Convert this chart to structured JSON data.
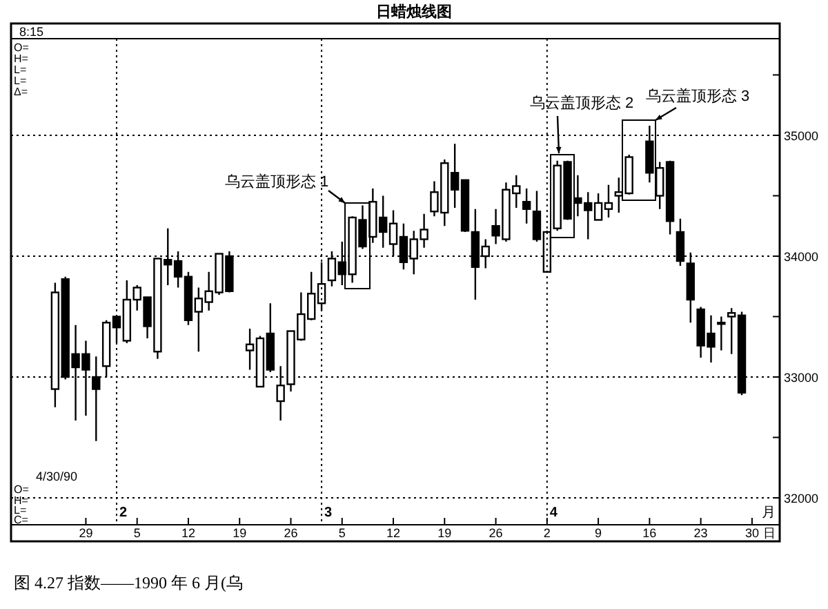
{
  "chart_data": {
    "type": "candlestick",
    "title": "日蜡烛线图",
    "xlabel": "日",
    "categories": [
      null,
      null,
      null,
      "29",
      null,
      null,
      null,
      null,
      "5",
      null,
      null,
      null,
      null,
      "12",
      null,
      null,
      null,
      null,
      "19",
      null,
      null,
      null,
      null,
      "26",
      null,
      null,
      null,
      null,
      "5",
      null,
      null,
      null,
      null,
      "12",
      null,
      null,
      null,
      null,
      "19",
      null,
      null,
      null,
      null,
      "26",
      null,
      null,
      null,
      null,
      "2",
      null,
      null,
      null,
      null,
      "9",
      null,
      null,
      null,
      null,
      "16",
      null,
      null,
      null,
      null,
      "23",
      null,
      null,
      null,
      null,
      "30"
    ],
    "ohlc": [
      [
        32900,
        33780,
        32750,
        33700
      ],
      [
        33810,
        33830,
        32980,
        33000
      ],
      [
        33190,
        33430,
        32640,
        33080
      ],
      [
        33190,
        33300,
        32680,
        33060
      ],
      [
        33000,
        33170,
        32470,
        32900
      ],
      [
        33090,
        33470,
        33000,
        33450
      ],
      [
        33500,
        33510,
        33280,
        33410
      ],
      [
        33300,
        33800,
        33280,
        33640
      ],
      [
        33640,
        33760,
        33550,
        33740
      ],
      [
        33660,
        33660,
        33320,
        33420
      ],
      [
        33210,
        33980,
        33150,
        33980
      ],
      [
        33970,
        34230,
        33760,
        33930
      ],
      [
        33960,
        34040,
        33740,
        33830
      ],
      [
        33830,
        33870,
        33430,
        33470
      ],
      [
        33540,
        33740,
        33210,
        33650
      ],
      [
        33620,
        33870,
        33550,
        33710
      ],
      [
        33700,
        34020,
        33680,
        34020
      ],
      [
        34000,
        34040,
        33700,
        33710
      ],
      null,
      [
        33220,
        33400,
        33060,
        33270
      ],
      [
        32920,
        33340,
        32920,
        33320
      ],
      [
        33360,
        33610,
        33040,
        33060
      ],
      [
        32800,
        33090,
        32640,
        32930
      ],
      [
        32940,
        33380,
        32880,
        33380
      ],
      [
        33310,
        33700,
        33300,
        33520
      ],
      [
        33480,
        33870,
        33470,
        33690
      ],
      [
        33610,
        33950,
        33550,
        33770
      ],
      [
        33800,
        34040,
        33750,
        33980
      ],
      [
        33950,
        34120,
        33760,
        33850
      ],
      [
        33850,
        34330,
        33780,
        34320
      ],
      [
        34300,
        34420,
        34060,
        34080
      ],
      [
        34160,
        34560,
        34110,
        34450
      ],
      [
        34320,
        34500,
        34070,
        34200
      ],
      [
        34100,
        34380,
        34000,
        34270
      ],
      [
        34160,
        34270,
        33890,
        33950
      ],
      [
        33980,
        34210,
        33850,
        34140
      ],
      [
        34140,
        34350,
        34070,
        34220
      ],
      [
        34370,
        34620,
        34330,
        34530
      ],
      [
        34360,
        34800,
        34250,
        34770
      ],
      [
        34690,
        34930,
        34400,
        34550
      ],
      [
        34630,
        34630,
        34200,
        34210
      ],
      [
        34200,
        34390,
        33640,
        33910
      ],
      [
        34000,
        34140,
        33900,
        34080
      ],
      [
        34250,
        34390,
        34100,
        34170
      ],
      [
        34140,
        34610,
        34120,
        34550
      ],
      [
        34520,
        34670,
        34400,
        34580
      ],
      [
        34450,
        34560,
        34270,
        34390
      ],
      [
        34370,
        34540,
        34120,
        34140
      ],
      [
        33870,
        34210,
        33870,
        34200
      ],
      [
        34230,
        34790,
        34210,
        34750
      ],
      [
        34780,
        34790,
        34300,
        34310
      ],
      [
        34480,
        34670,
        34330,
        34440
      ],
      [
        34440,
        34530,
        34140,
        34380
      ],
      [
        34300,
        34520,
        34300,
        34440
      ],
      [
        34390,
        34590,
        34320,
        34440
      ],
      [
        34500,
        34650,
        34360,
        34530
      ],
      [
        34520,
        34840,
        34510,
        34820
      ],
      null,
      [
        34950,
        35080,
        34610,
        34690
      ],
      [
        34500,
        34780,
        34390,
        34730
      ],
      [
        34780,
        34790,
        34180,
        34290
      ],
      [
        34200,
        34310,
        33920,
        33960
      ],
      [
        33940,
        34030,
        33450,
        33640
      ],
      [
        33560,
        33580,
        33160,
        33260
      ],
      [
        33360,
        33510,
        33120,
        33250
      ],
      [
        33440,
        33500,
        33220,
        33450
      ],
      [
        33500,
        33570,
        33190,
        33530
      ],
      [
        33510,
        33540,
        32850,
        32870
      ],
      null
    ],
    "ylim": [
      31800,
      35800
    ],
    "yticks": [
      32000,
      {
        "value": 32500,
        "label": null
      },
      33000,
      {
        "value": 33500,
        "label": null
      },
      34000,
      {
        "value": 34500,
        "label": null
      },
      35000,
      {
        "value": 35500,
        "label": null
      }
    ],
    "grid": true,
    "annotations": [
      "8:15",
      "O=",
      "H=",
      "L=",
      "L=",
      "Δ=",
      "4/30/90",
      "O=",
      "H=",
      "L=",
      "C=",
      "月",
      "2",
      "3",
      "4",
      "图 4.27 指数——1990 年 6 月(乌",
      "乌云盖顶形态 1",
      "乌云盖顶形态 2",
      "乌云盖顶形态 3"
    ]
  }
}
